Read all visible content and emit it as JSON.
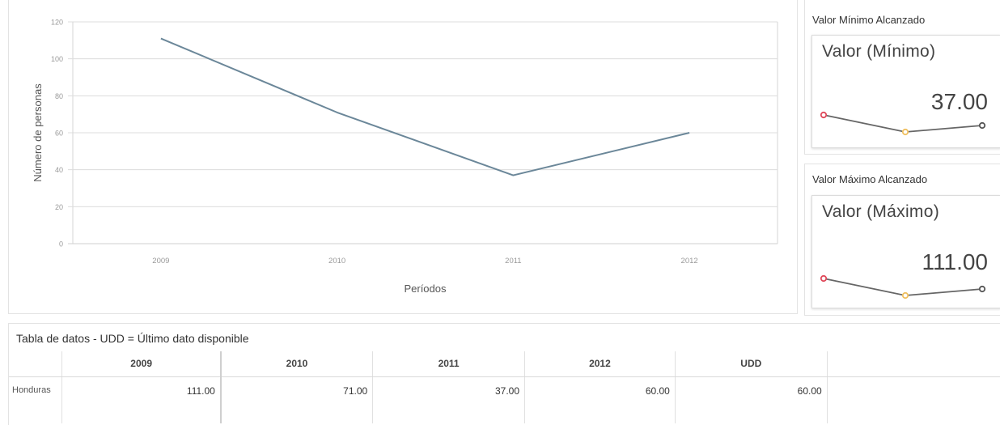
{
  "chart_data": {
    "type": "line",
    "categories": [
      "2009",
      "2010",
      "2011",
      "2012"
    ],
    "series": [
      {
        "values": [
          111,
          71,
          37,
          60
        ]
      }
    ],
    "xlabel": "Períodos",
    "ylabel": "Número de personas",
    "ylim": [
      0,
      120
    ],
    "yticks": [
      0,
      20,
      40,
      60,
      80,
      100,
      120
    ],
    "grid": true,
    "line_color": "#6b8799"
  },
  "min_card": {
    "panel_title": "Valor Mínimo Alcanzado",
    "label": "Valor (Mínimo)",
    "value": "37.00"
  },
  "max_card": {
    "panel_title": "Valor Máximo Alcanzado",
    "label": "Valor (Máximo)",
    "value": "111.00"
  },
  "table": {
    "title": "Tabla de datos - UDD = Último dato disponible",
    "headers": [
      "2009",
      "2010",
      "2011",
      "2012",
      "UDD"
    ],
    "rows": [
      {
        "label": "Honduras",
        "values": [
          "111.00",
          "71.00",
          "37.00",
          "60.00",
          "60.00"
        ]
      }
    ]
  },
  "colors": {
    "spark_start": "#e0495a",
    "spark_min": "#f0c060",
    "spark_end": "#555555",
    "spark_line": "#666666"
  }
}
